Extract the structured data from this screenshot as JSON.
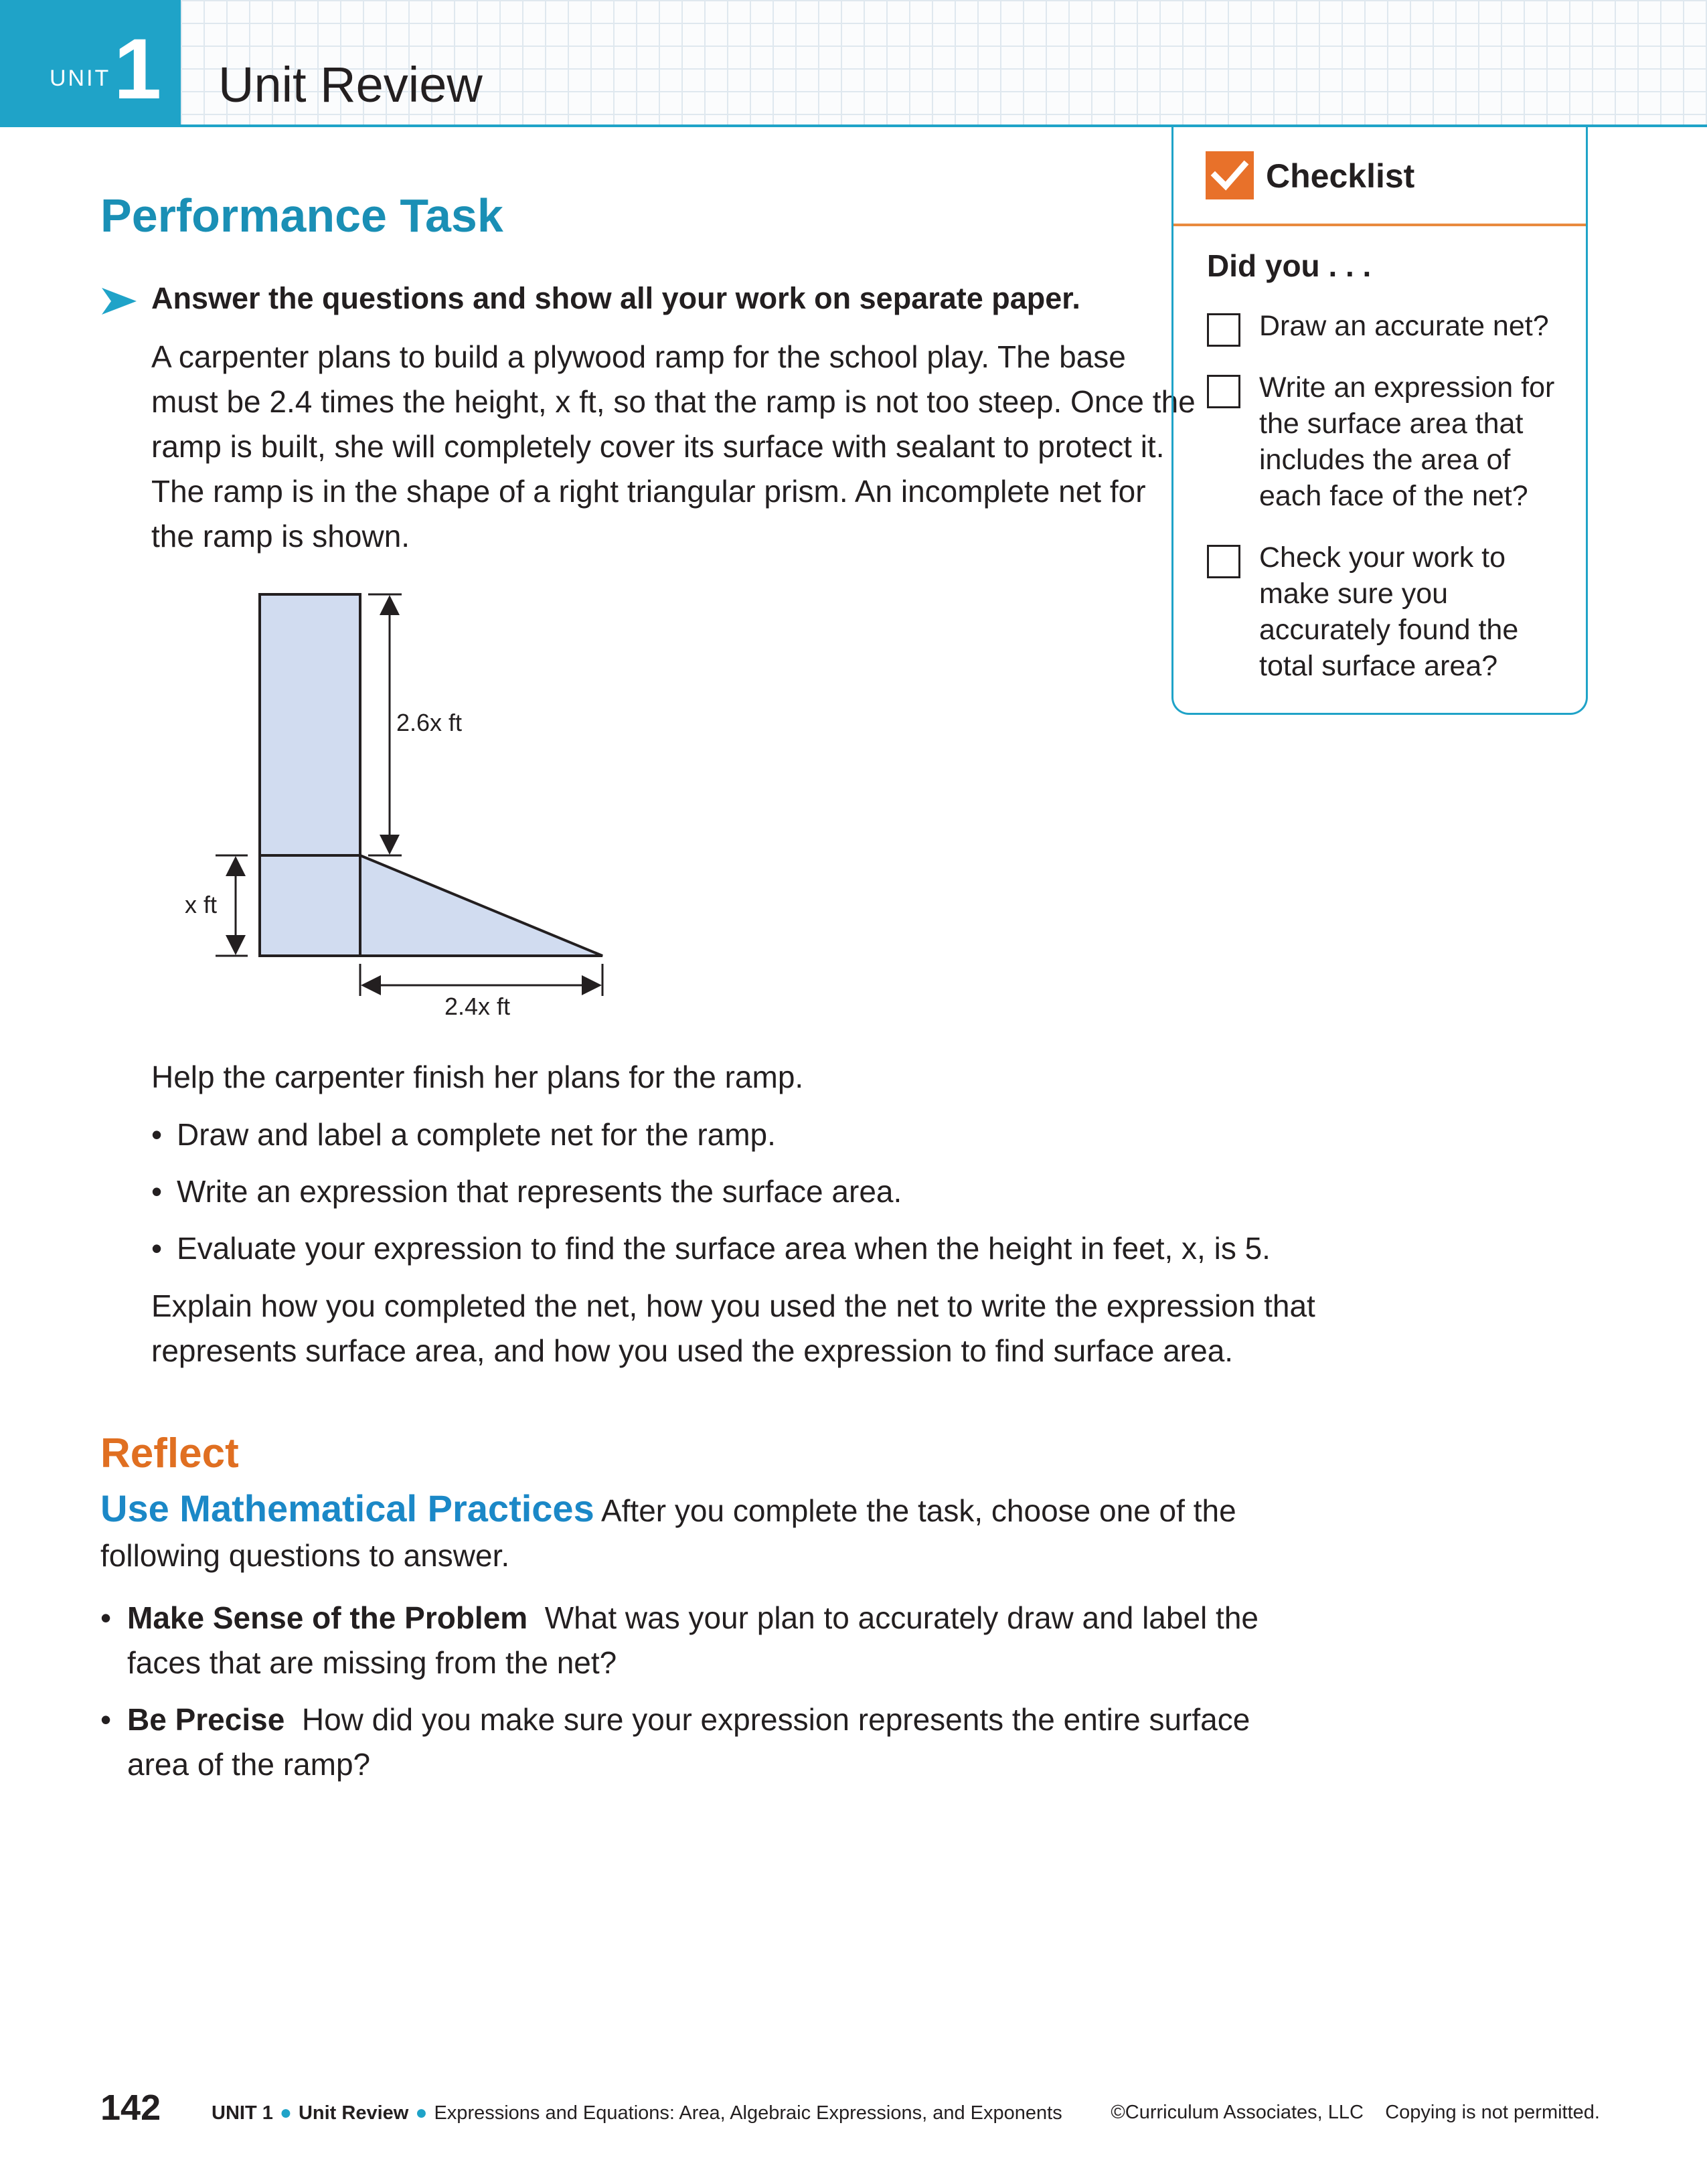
{
  "header": {
    "unit_word": "UNIT",
    "unit_number": "1",
    "title": "Unit Review"
  },
  "performance_task": {
    "title": "Performance Task",
    "instruction": "Answer the questions and show all your work on separate paper.",
    "intro_text": "A carpenter plans to build a plywood ramp for the school play. The base must be 2.4 times the height, x ft, so that the ramp is not too steep. Once the ramp is built, she will completely cover its surface with sealant to protect it. The ramp is in the shape of a right triangular prism. An incomplete net for the ramp is shown.",
    "diagram": {
      "label_top": "2.6x ft",
      "label_left": "x ft",
      "label_bottom": "2.4x ft",
      "fill_color": "#d1dcf0"
    },
    "help_text": "Help the carpenter finish her plans for the ramp.",
    "bullets": [
      "Draw and label a complete net for the ramp.",
      "Write an expression that represents the surface area.",
      "Evaluate your expression to find the surface area when the height in feet, x, is 5."
    ],
    "explain_text": "Explain how you completed the net, how you used the net to write the expression that represents surface area, and how you used the expression to find surface area."
  },
  "reflect": {
    "title": "Reflect",
    "practices_heading": "Use Mathematical Practices",
    "practices_text": "After you complete the task, choose one of the following questions to answer.",
    "items": [
      {
        "heading": "Make Sense of the Problem",
        "text": "What was your plan to accurately draw and label the faces that are missing from the net?"
      },
      {
        "heading": "Be Precise",
        "text": "How did you make sure your expression represents the entire surface area of the ramp?"
      }
    ]
  },
  "checklist": {
    "title": "Checklist",
    "subtitle": "Did you . . .",
    "items": [
      "Draw an accurate net?",
      "Write an expression for the surface area that includes the area of each face of the net?",
      "Check your work to make sure you accurately found the total surface area?"
    ]
  },
  "footer": {
    "page_number": "142",
    "unit": "UNIT 1",
    "section": "Unit Review",
    "topic": "Expressions and Equations: Area, Algebraic Expressions, and Exponents",
    "copyright": "©Curriculum Associates, LLC",
    "notice": "Copying is not permitted."
  },
  "colors": {
    "accent_blue": "#1fa3c8",
    "title_blue": "#1a8fb5",
    "reflect_orange": "#e06f21",
    "practice_blue": "#1b88c7",
    "check_orange": "#e8712a"
  }
}
